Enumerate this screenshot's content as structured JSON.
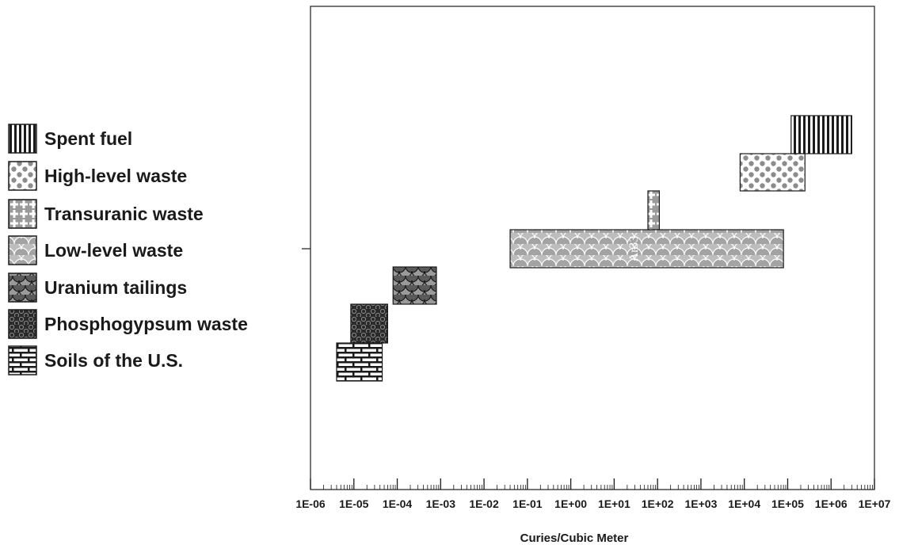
{
  "chart_data": {
    "type": "range-bar",
    "xscale": "log",
    "xlabel": "Curies/Cubic Meter",
    "x_tick_labels": [
      "1E-06",
      "1E-05",
      "1E-04",
      "1E-03",
      "1E-02",
      "1E-01",
      "1E+00",
      "1E+01",
      "1E+02",
      "1E+03",
      "1E+04",
      "1E+05",
      "1E+06",
      "1E+07"
    ],
    "xlim": [
      1e-06,
      10000000
    ],
    "grid": false,
    "legend_position": "left",
    "bar_annotation": "Ar33",
    "series": [
      {
        "name": "Spent fuel",
        "pattern": "vertical-stripes",
        "x_range": [
          120000,
          3000000
        ]
      },
      {
        "name": "High-level waste",
        "pattern": "dots",
        "x_range": [
          8000,
          250000
        ]
      },
      {
        "name": "Transuranic waste",
        "pattern": "crosses",
        "x_range": [
          60,
          110
        ]
      },
      {
        "name": "Low-level waste",
        "pattern": "scallops-light",
        "x_range": [
          0.04,
          80000
        ]
      },
      {
        "name": "Uranium tailings",
        "pattern": "scallops-dark",
        "x_range": [
          8e-05,
          0.0008
        ]
      },
      {
        "name": "Phosphogypsum waste",
        "pattern": "hexagons",
        "x_range": [
          8.5e-06,
          6e-05
        ]
      },
      {
        "name": "Soils of the U.S.",
        "pattern": "bricks",
        "x_range": [
          4e-06,
          4.5e-05
        ]
      }
    ]
  }
}
